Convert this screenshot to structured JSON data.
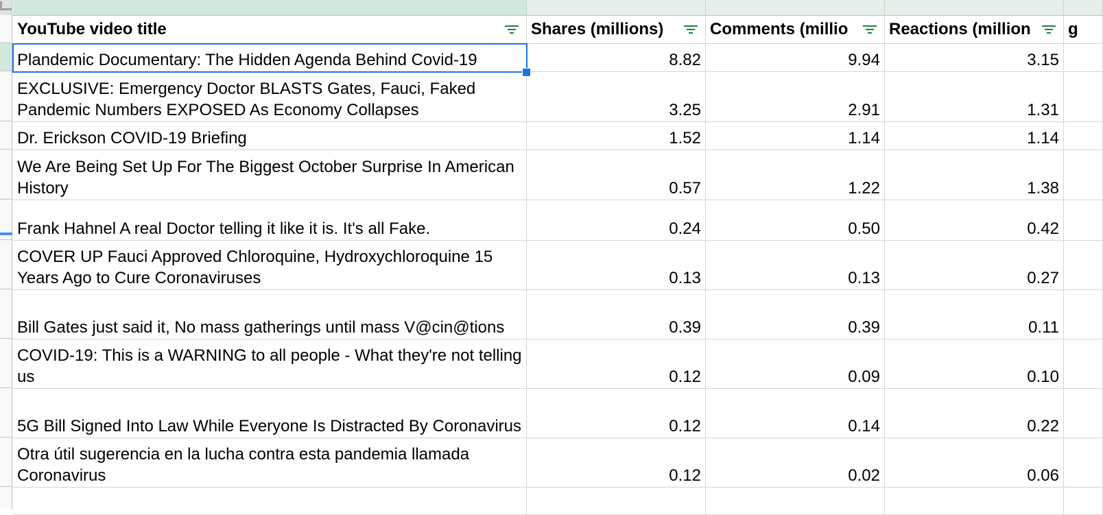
{
  "sheet": {
    "column_letters": [
      "",
      "",
      "",
      ""
    ],
    "headers": [
      {
        "label": "YouTube video title"
      },
      {
        "label": "Shares (millions)"
      },
      {
        "label": "Comments (millio"
      },
      {
        "label": "Reactions (million"
      },
      {
        "label": "g"
      }
    ],
    "filter_icon": "filter-icon",
    "rows": [
      {
        "title": "Plandemic Documentary: The Hidden Agenda Behind Covid-19",
        "shares": "8.82",
        "comments": "9.94",
        "reactions": "3.15"
      },
      {
        "title": "EXCLUSIVE: Emergency Doctor BLASTS Gates, Fauci, Faked Pandemic Numbers EXPOSED As Economy Collapses",
        "shares": "3.25",
        "comments": "2.91",
        "reactions": "1.31"
      },
      {
        "title": "Dr. Erickson COVID-19 Briefing",
        "shares": "1.52",
        "comments": "1.14",
        "reactions": "1.14"
      },
      {
        "title": "We Are Being Set Up For The Biggest October Surprise In American History",
        "shares": "0.57",
        "comments": "1.22",
        "reactions": "1.38"
      },
      {
        "title": "Frank Hahnel A real Doctor telling it like it is. It's all Fake.",
        "shares": "0.24",
        "comments": "0.50",
        "reactions": "0.42"
      },
      {
        "title": "COVER UP Fauci Approved Chloroquine, Hydroxychloroquine 15 Years Ago to Cure Coronaviruses",
        "shares": "0.13",
        "comments": "0.13",
        "reactions": "0.27"
      },
      {
        "title": "Bill Gates just said it, No mass gatherings until mass V@cin@tions",
        "shares": "0.39",
        "comments": "0.39",
        "reactions": "0.11"
      },
      {
        "title": "COVID-19: This is a WARNING to all people - What they're not telling us",
        "shares": "0.12",
        "comments": "0.09",
        "reactions": "0.10"
      },
      {
        "title": "5G Bill Signed Into Law While Everyone Is Distracted By Coronavirus",
        "shares": "0.12",
        "comments": "0.14",
        "reactions": "0.22"
      },
      {
        "title": "Otra útil sugerencia en la lucha contra esta pandemia llamada Coronavirus",
        "shares": "0.12",
        "comments": "0.02",
        "reactions": "0.06"
      }
    ]
  },
  "colors": {
    "selection": "#1a73e8",
    "filter_icon": "#188038",
    "selected_header": "#d3e8dc"
  }
}
